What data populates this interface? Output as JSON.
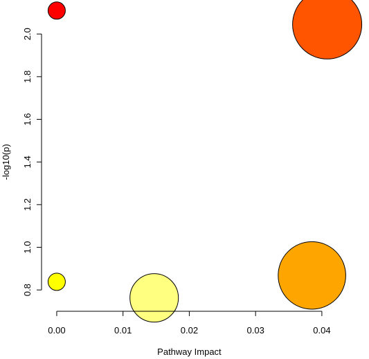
{
  "chart_data": {
    "type": "scatter",
    "title": "",
    "xlabel": "Pathway Impact",
    "ylabel": "-log10(p)",
    "xlim": [
      -0.0025,
      0.0445
    ],
    "ylim": [
      0.7,
      2.14
    ],
    "xticks": [
      0.0,
      0.01,
      0.02,
      0.03,
      0.04
    ],
    "xtick_labels": [
      "0.00",
      "0.01",
      "0.02",
      "0.03",
      "0.04"
    ],
    "yticks": [
      0.8,
      1.0,
      1.2,
      1.4,
      1.6,
      1.8,
      2.0
    ],
    "ytick_labels": [
      "0.8",
      "1.0",
      "1.2",
      "1.4",
      "1.6",
      "1.8",
      "2.0"
    ],
    "grid": false,
    "legend": "none",
    "points": [
      {
        "x": 0.0,
        "y": 2.11,
        "size": 1.0,
        "color": "#ff0000"
      },
      {
        "x": 0.0408,
        "y": 2.045,
        "size": 4.0,
        "color": "#ff5500"
      },
      {
        "x": 0.0,
        "y": 0.838,
        "size": 1.0,
        "color": "#ffff00"
      },
      {
        "x": 0.0147,
        "y": 0.763,
        "size": 2.8,
        "color": "#ffff80"
      },
      {
        "x": 0.0385,
        "y": 0.868,
        "size": 3.9,
        "color": "#ffa500"
      }
    ]
  }
}
